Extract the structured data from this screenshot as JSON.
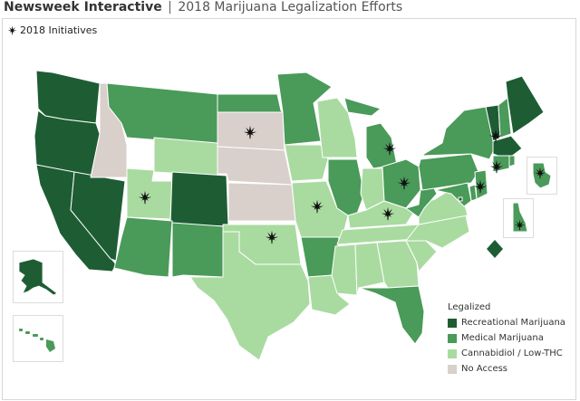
{
  "header": {
    "brand": "Newsweek Interactive",
    "separator": "|",
    "subtitle": "2018 Marijuana Legalization Efforts"
  },
  "initiatives_label": "2018 Initiatives",
  "legend": {
    "title": "Legalized",
    "items": [
      {
        "label": "Recreational Marijuana",
        "color": "#1e5d34"
      },
      {
        "label": "Medical Marijuana",
        "color": "#4a9a59"
      },
      {
        "label": "Cannabidiol / Low-THC",
        "color": "#a9dba0"
      },
      {
        "label": "No Access",
        "color": "#d9cfcb"
      }
    ]
  },
  "states": [
    {
      "name": "WA",
      "status": "Recreational Marijuana"
    },
    {
      "name": "OR",
      "status": "Recreational Marijuana"
    },
    {
      "name": "CA",
      "status": "Recreational Marijuana"
    },
    {
      "name": "NV",
      "status": "Recreational Marijuana"
    },
    {
      "name": "ID",
      "status": "No Access"
    },
    {
      "name": "MT",
      "status": "Medical Marijuana"
    },
    {
      "name": "WY",
      "status": "Cannabidiol / Low-THC"
    },
    {
      "name": "UT",
      "status": "Cannabidiol / Low-THC",
      "initiative": true
    },
    {
      "name": "CO",
      "status": "Recreational Marijuana"
    },
    {
      "name": "AZ",
      "status": "Medical Marijuana"
    },
    {
      "name": "NM",
      "status": "Medical Marijuana"
    },
    {
      "name": "ND",
      "status": "Medical Marijuana"
    },
    {
      "name": "SD",
      "status": "No Access",
      "initiative": true
    },
    {
      "name": "NE",
      "status": "No Access"
    },
    {
      "name": "KS",
      "status": "No Access"
    },
    {
      "name": "OK",
      "status": "Cannabidiol / Low-THC",
      "initiative": true
    },
    {
      "name": "TX",
      "status": "Cannabidiol / Low-THC"
    },
    {
      "name": "MN",
      "status": "Medical Marijuana"
    },
    {
      "name": "IA",
      "status": "Cannabidiol / Low-THC"
    },
    {
      "name": "MO",
      "status": "Cannabidiol / Low-THC",
      "initiative": true
    },
    {
      "name": "AR",
      "status": "Medical Marijuana"
    },
    {
      "name": "LA",
      "status": "Cannabidiol / Low-THC"
    },
    {
      "name": "WI",
      "status": "Cannabidiol / Low-THC"
    },
    {
      "name": "IL",
      "status": "Medical Marijuana"
    },
    {
      "name": "MI",
      "status": "Medical Marijuana",
      "initiative": true
    },
    {
      "name": "IN",
      "status": "Cannabidiol / Low-THC"
    },
    {
      "name": "OH",
      "status": "Medical Marijuana",
      "initiative": true
    },
    {
      "name": "KY",
      "status": "Cannabidiol / Low-THC",
      "initiative": true
    },
    {
      "name": "TN",
      "status": "Cannabidiol / Low-THC"
    },
    {
      "name": "MS",
      "status": "Cannabidiol / Low-THC"
    },
    {
      "name": "AL",
      "status": "Cannabidiol / Low-THC"
    },
    {
      "name": "GA",
      "status": "Cannabidiol / Low-THC"
    },
    {
      "name": "FL",
      "status": "Medical Marijuana"
    },
    {
      "name": "SC",
      "status": "Cannabidiol / Low-THC"
    },
    {
      "name": "NC",
      "status": "Cannabidiol / Low-THC"
    },
    {
      "name": "VA",
      "status": "Cannabidiol / Low-THC"
    },
    {
      "name": "WV",
      "status": "Medical Marijuana"
    },
    {
      "name": "PA",
      "status": "Medical Marijuana"
    },
    {
      "name": "NY",
      "status": "Medical Marijuana"
    },
    {
      "name": "VT",
      "status": "Recreational Marijuana",
      "initiative": true
    },
    {
      "name": "NH",
      "status": "Medical Marijuana"
    },
    {
      "name": "ME",
      "status": "Recreational Marijuana"
    },
    {
      "name": "MA",
      "status": "Recreational Marijuana"
    },
    {
      "name": "CT",
      "status": "Medical Marijuana",
      "initiative": true
    },
    {
      "name": "RI",
      "status": "Medical Marijuana",
      "initiative": true
    },
    {
      "name": "NJ",
      "status": "Medical Marijuana",
      "initiative": true
    },
    {
      "name": "DE",
      "status": "Medical Marijuana",
      "initiative": true
    },
    {
      "name": "MD",
      "status": "Medical Marijuana"
    },
    {
      "name": "DC",
      "status": "Recreational Marijuana"
    },
    {
      "name": "AK",
      "status": "Recreational Marijuana"
    },
    {
      "name": "HI",
      "status": "Medical Marijuana"
    }
  ]
}
